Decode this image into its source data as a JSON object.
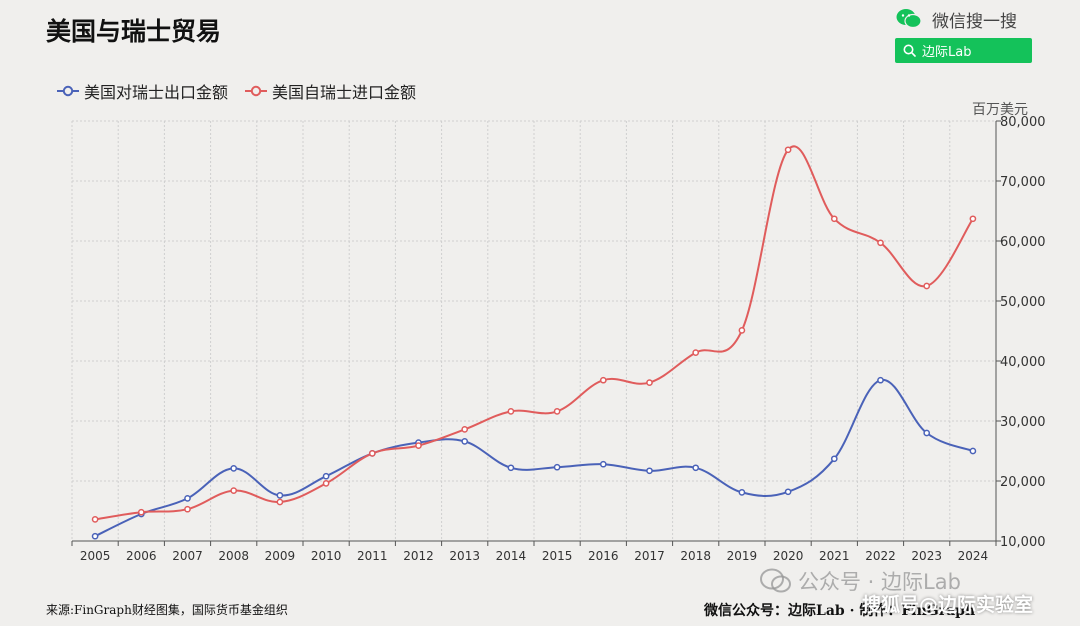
{
  "title": "美国与瑞士贸易",
  "wechat": {
    "label": "微信搜一搜",
    "search_text": "边际Lab",
    "brand_color": "#14c25a"
  },
  "footer": {
    "source": "来源:FinGraph财经图集，国际货币基金组织",
    "wechat_account": "微信公众号：边际Lab · 制作：FinGraph"
  },
  "watermarks": {
    "main": "公众号 · 边际Lab",
    "corner": "搜狐号@边际实验室"
  },
  "chart_data": {
    "type": "line",
    "smooth": true,
    "unit": "百万美元",
    "categories": [
      "2005",
      "2006",
      "2007",
      "2008",
      "2009",
      "2010",
      "2011",
      "2012",
      "2013",
      "2014",
      "2015",
      "2016",
      "2017",
      "2018",
      "2019",
      "2020",
      "2021",
      "2022",
      "2023",
      "2024"
    ],
    "series": [
      {
        "name": "美国对瑞士出口金额",
        "color": "#4a62b8",
        "values": [
          10800,
          14500,
          17100,
          22100,
          17600,
          20800,
          24600,
          26400,
          26600,
          22200,
          22300,
          22800,
          21700,
          22200,
          18100,
          18200,
          23700,
          36800,
          28000,
          25000
        ]
      },
      {
        "name": "美国自瑞士进口金额",
        "color": "#e05c5c",
        "values": [
          13600,
          14800,
          15300,
          18400,
          16500,
          19600,
          24600,
          25900,
          28600,
          31600,
          31600,
          36800,
          36400,
          41400,
          45100,
          75200,
          63700,
          59700,
          52500,
          63700
        ]
      }
    ],
    "y_axis": {
      "position": "right",
      "range": [
        10000,
        80000
      ],
      "ticks": [
        "10,000",
        "20,000",
        "30,000",
        "40,000",
        "50,000",
        "60,000",
        "70,000",
        "80,000"
      ]
    },
    "grid": true,
    "legend_position": "top-left"
  }
}
